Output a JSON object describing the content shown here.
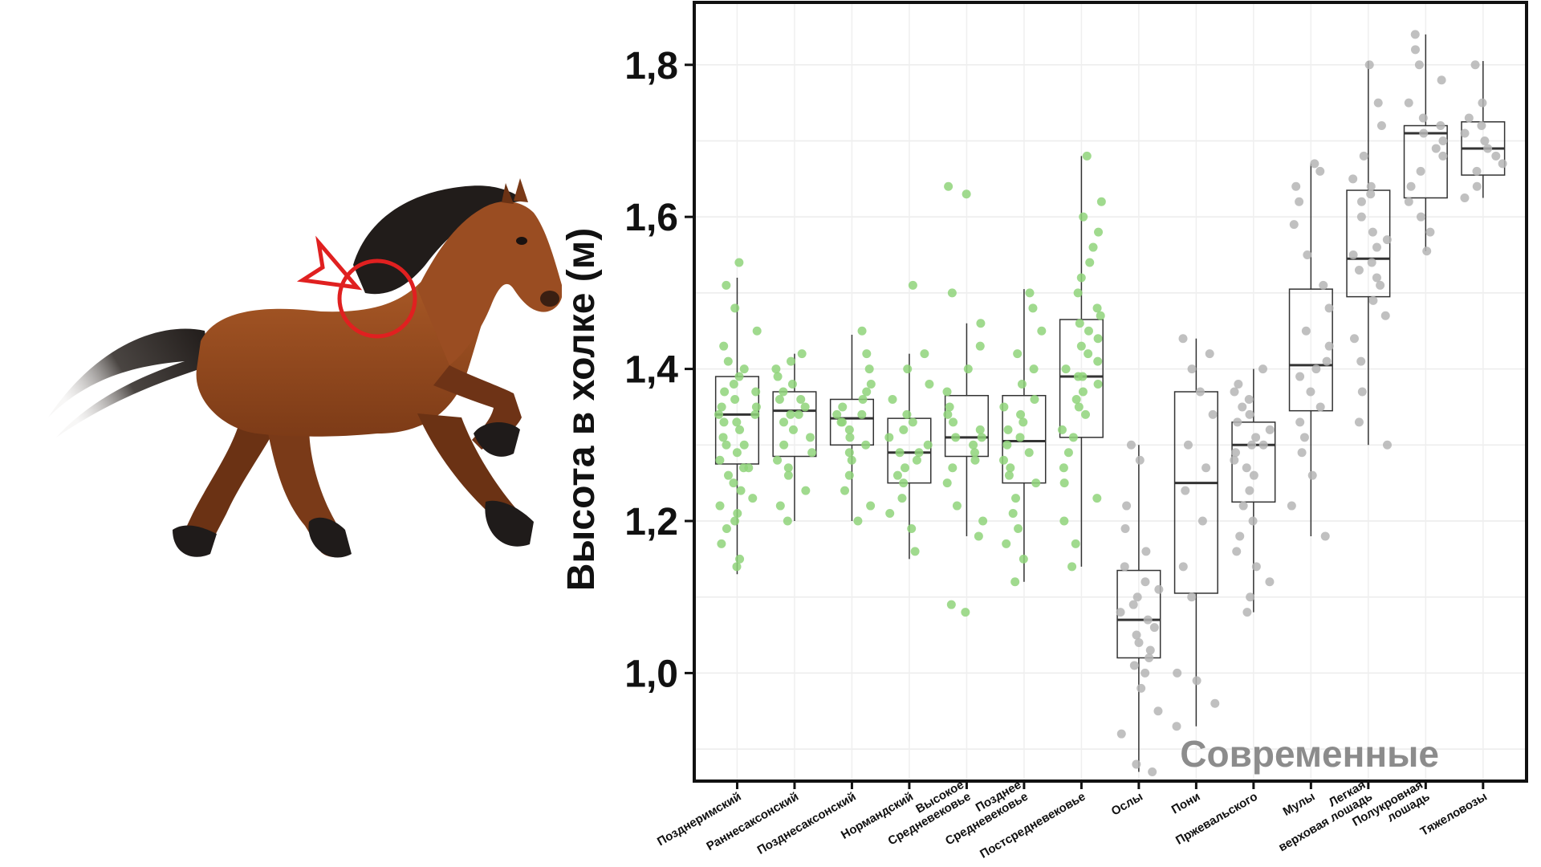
{
  "chart_data": {
    "type": "box",
    "ylabel": "Высота в холке (м)",
    "xlabel": "",
    "ylim": [
      0.86,
      1.88
    ],
    "yticks": [
      1.0,
      1.2,
      1.4,
      1.6,
      1.8
    ],
    "ytick_labels": [
      "1,0",
      "1,2",
      "1,4",
      "1,6",
      "1,8"
    ],
    "grid": true,
    "annotation": "Современные",
    "colors": {
      "archaeological": "#8fd47a",
      "modern": "#b5b5b5",
      "box": "#333333",
      "annotation": "#8c8c8c"
    },
    "categories": [
      {
        "label": [
          "Позднеримский"
        ],
        "group": "archaeological",
        "q1": 1.275,
        "median": 1.34,
        "q3": 1.39,
        "whisker_low": 1.13,
        "whisker_high": 1.52,
        "points": [
          1.14,
          1.15,
          1.17,
          1.19,
          1.2,
          1.21,
          1.22,
          1.23,
          1.24,
          1.25,
          1.26,
          1.27,
          1.27,
          1.28,
          1.29,
          1.3,
          1.3,
          1.31,
          1.32,
          1.33,
          1.33,
          1.34,
          1.34,
          1.35,
          1.35,
          1.36,
          1.37,
          1.37,
          1.38,
          1.39,
          1.4,
          1.41,
          1.43,
          1.45,
          1.48,
          1.51,
          1.54
        ]
      },
      {
        "label": [
          "Раннесаксонский"
        ],
        "group": "archaeological",
        "q1": 1.285,
        "median": 1.345,
        "q3": 1.37,
        "whisker_low": 1.2,
        "whisker_high": 1.42,
        "points": [
          1.2,
          1.22,
          1.24,
          1.26,
          1.27,
          1.28,
          1.29,
          1.3,
          1.31,
          1.32,
          1.33,
          1.34,
          1.34,
          1.35,
          1.36,
          1.36,
          1.37,
          1.38,
          1.39,
          1.4,
          1.41,
          1.42
        ]
      },
      {
        "label": [
          "Позднесаксонский"
        ],
        "group": "archaeological",
        "q1": 1.3,
        "median": 1.335,
        "q3": 1.36,
        "whisker_low": 1.2,
        "whisker_high": 1.445,
        "points": [
          1.2,
          1.22,
          1.24,
          1.26,
          1.28,
          1.29,
          1.3,
          1.31,
          1.32,
          1.33,
          1.33,
          1.34,
          1.34,
          1.35,
          1.36,
          1.37,
          1.38,
          1.4,
          1.42,
          1.45
        ]
      },
      {
        "label": [
          "Нормандский"
        ],
        "group": "archaeological",
        "q1": 1.25,
        "median": 1.29,
        "q3": 1.335,
        "whisker_low": 1.15,
        "whisker_high": 1.42,
        "points": [
          1.16,
          1.19,
          1.21,
          1.23,
          1.25,
          1.26,
          1.27,
          1.28,
          1.29,
          1.29,
          1.3,
          1.31,
          1.32,
          1.33,
          1.34,
          1.36,
          1.38,
          1.4,
          1.42,
          1.51
        ]
      },
      {
        "label": [
          "Высокое",
          "Средневековье"
        ],
        "group": "archaeological",
        "q1": 1.285,
        "median": 1.31,
        "q3": 1.365,
        "whisker_low": 1.18,
        "whisker_high": 1.46,
        "points": [
          1.08,
          1.09,
          1.18,
          1.2,
          1.22,
          1.25,
          1.27,
          1.28,
          1.29,
          1.3,
          1.31,
          1.31,
          1.32,
          1.33,
          1.34,
          1.35,
          1.37,
          1.4,
          1.43,
          1.46,
          1.5,
          1.63,
          1.64
        ]
      },
      {
        "label": [
          "Позднее",
          "Средневековье"
        ],
        "group": "archaeological",
        "q1": 1.25,
        "median": 1.305,
        "q3": 1.365,
        "whisker_low": 1.12,
        "whisker_high": 1.505,
        "points": [
          1.12,
          1.15,
          1.17,
          1.19,
          1.21,
          1.23,
          1.25,
          1.26,
          1.27,
          1.28,
          1.29,
          1.3,
          1.31,
          1.32,
          1.33,
          1.34,
          1.35,
          1.36,
          1.38,
          1.4,
          1.42,
          1.45,
          1.48,
          1.5
        ]
      },
      {
        "label": [
          "Постсредневековье"
        ],
        "group": "archaeological",
        "q1": 1.31,
        "median": 1.39,
        "q3": 1.465,
        "whisker_low": 1.14,
        "whisker_high": 1.68,
        "points": [
          1.14,
          1.17,
          1.2,
          1.23,
          1.25,
          1.27,
          1.29,
          1.31,
          1.32,
          1.34,
          1.35,
          1.36,
          1.37,
          1.38,
          1.39,
          1.39,
          1.4,
          1.41,
          1.42,
          1.43,
          1.44,
          1.45,
          1.46,
          1.47,
          1.48,
          1.5,
          1.52,
          1.54,
          1.56,
          1.58,
          1.6,
          1.62,
          1.68
        ]
      },
      {
        "label": [
          "Ослы"
        ],
        "group": "modern",
        "q1": 1.02,
        "median": 1.07,
        "q3": 1.135,
        "whisker_low": 0.87,
        "whisker_high": 1.3,
        "points": [
          0.87,
          0.88,
          0.92,
          0.95,
          0.98,
          1.0,
          1.01,
          1.02,
          1.03,
          1.04,
          1.05,
          1.06,
          1.07,
          1.08,
          1.09,
          1.1,
          1.11,
          1.12,
          1.14,
          1.16,
          1.19,
          1.22,
          1.28,
          1.3
        ]
      },
      {
        "label": [
          "Пони"
        ],
        "group": "modern",
        "q1": 1.105,
        "median": 1.25,
        "q3": 1.37,
        "whisker_low": 0.93,
        "whisker_high": 1.44,
        "points": [
          0.93,
          0.96,
          0.99,
          1.0,
          1.1,
          1.14,
          1.2,
          1.24,
          1.27,
          1.3,
          1.34,
          1.37,
          1.4,
          1.42,
          1.44
        ]
      },
      {
        "label": [
          "Пржевальского"
        ],
        "group": "modern",
        "q1": 1.225,
        "median": 1.3,
        "q3": 1.33,
        "whisker_low": 1.08,
        "whisker_high": 1.4,
        "points": [
          1.08,
          1.1,
          1.12,
          1.14,
          1.16,
          1.18,
          1.2,
          1.22,
          1.24,
          1.26,
          1.27,
          1.28,
          1.29,
          1.3,
          1.3,
          1.31,
          1.32,
          1.33,
          1.34,
          1.35,
          1.36,
          1.37,
          1.38,
          1.4
        ]
      },
      {
        "label": [
          "Мулы"
        ],
        "group": "modern",
        "q1": 1.345,
        "median": 1.405,
        "q3": 1.505,
        "whisker_low": 1.18,
        "whisker_high": 1.67,
        "points": [
          1.18,
          1.22,
          1.26,
          1.29,
          1.31,
          1.33,
          1.35,
          1.37,
          1.39,
          1.4,
          1.41,
          1.43,
          1.45,
          1.48,
          1.51,
          1.55,
          1.59,
          1.62,
          1.64,
          1.66,
          1.67
        ]
      },
      {
        "label": [
          "Легкая",
          "верховая лошадь"
        ],
        "group": "modern",
        "q1": 1.495,
        "median": 1.545,
        "q3": 1.635,
        "whisker_low": 1.3,
        "whisker_high": 1.805,
        "points": [
          1.3,
          1.33,
          1.37,
          1.41,
          1.44,
          1.47,
          1.49,
          1.51,
          1.52,
          1.53,
          1.54,
          1.55,
          1.56,
          1.57,
          1.58,
          1.6,
          1.62,
          1.63,
          1.64,
          1.65,
          1.68,
          1.72,
          1.75,
          1.8
        ]
      },
      {
        "label": [
          "Полукровная",
          "лошадь"
        ],
        "group": "modern",
        "q1": 1.625,
        "median": 1.71,
        "q3": 1.72,
        "whisker_low": 1.555,
        "whisker_high": 1.84,
        "points": [
          1.555,
          1.58,
          1.6,
          1.62,
          1.64,
          1.66,
          1.68,
          1.69,
          1.7,
          1.71,
          1.72,
          1.73,
          1.75,
          1.78,
          1.8,
          1.82,
          1.84
        ]
      },
      {
        "label": [
          "Тяжеловозы"
        ],
        "group": "modern",
        "q1": 1.655,
        "median": 1.69,
        "q3": 1.725,
        "whisker_low": 1.625,
        "whisker_high": 1.805,
        "points": [
          1.625,
          1.64,
          1.66,
          1.67,
          1.68,
          1.69,
          1.7,
          1.71,
          1.72,
          1.73,
          1.75,
          1.8
        ]
      }
    ]
  }
}
